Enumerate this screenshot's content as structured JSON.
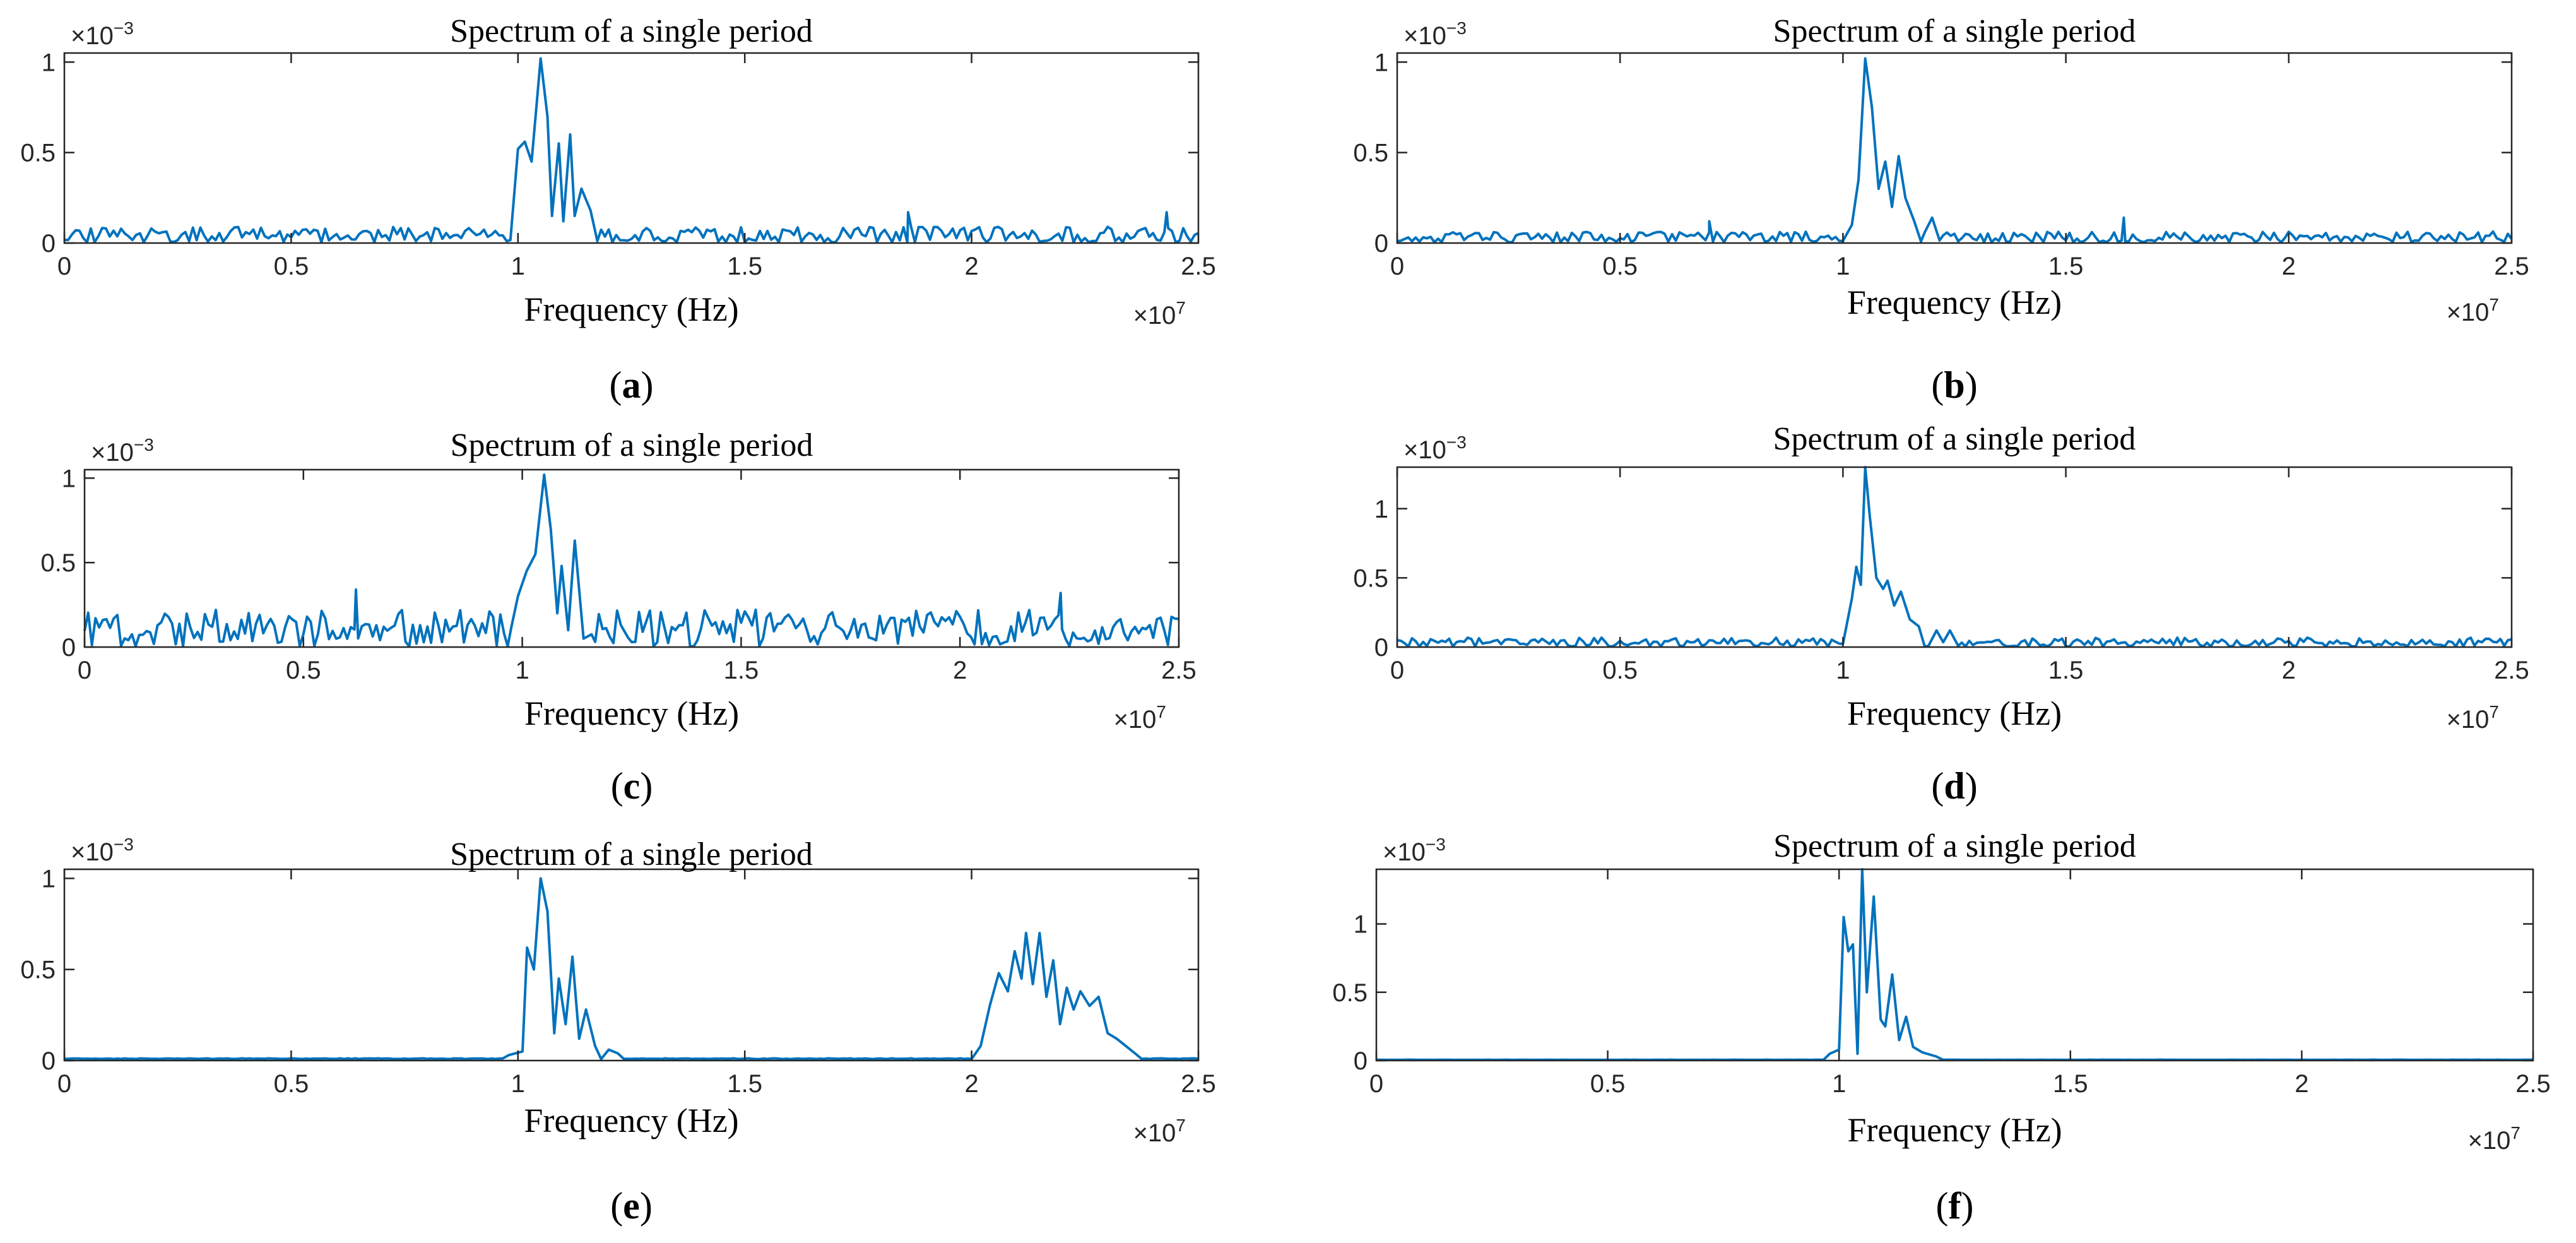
{
  "figure": {
    "line_color": "#0072BD",
    "axis_color": "#262626"
  },
  "chart_data": [
    {
      "id": "a",
      "caption": "a",
      "type": "line",
      "title": "Spectrum of a single period",
      "xlabel": "Frequency (Hz)",
      "ylabel": "",
      "x_multiplier": "×10",
      "x_exponent": "7",
      "y_multiplier": "×10",
      "y_exponent": "−3",
      "xlim": [
        0,
        2.5
      ],
      "ylim": [
        0,
        1.05
      ],
      "xticks": [
        0,
        0.5,
        1,
        1.5,
        2,
        2.5
      ],
      "xtick_labels": [
        "0",
        "0.5",
        "1",
        "1.5",
        "2",
        "2.5"
      ],
      "yticks": [
        0,
        0.5,
        1
      ],
      "ytick_labels": [
        "0",
        "0.5",
        "1"
      ],
      "noise": {
        "floor": 0.04,
        "amp": 0.09,
        "seed": 11
      },
      "peaks": [
        {
          "x": 1.0,
          "y": 0.52
        },
        {
          "x": 1.015,
          "y": 0.56
        },
        {
          "x": 1.03,
          "y": 0.45
        },
        {
          "x": 1.05,
          "y": 1.02
        },
        {
          "x": 1.065,
          "y": 0.7
        },
        {
          "x": 1.075,
          "y": 0.15
        },
        {
          "x": 1.09,
          "y": 0.55
        },
        {
          "x": 1.1,
          "y": 0.12
        },
        {
          "x": 1.115,
          "y": 0.6
        },
        {
          "x": 1.125,
          "y": 0.15
        },
        {
          "x": 1.14,
          "y": 0.3
        },
        {
          "x": 1.16,
          "y": 0.18
        }
      ],
      "spikes": [
        {
          "x": 1.86,
          "y": 0.17
        },
        {
          "x": 2.43,
          "y": 0.17
        }
      ]
    },
    {
      "id": "b",
      "caption": "b",
      "type": "line",
      "title": "Spectrum of a single period",
      "xlabel": "Frequency (Hz)",
      "ylabel": "",
      "x_multiplier": "×10",
      "x_exponent": "7",
      "y_multiplier": "×10",
      "y_exponent": "−3",
      "xlim": [
        0,
        2.5
      ],
      "ylim": [
        0,
        1.05
      ],
      "xticks": [
        0,
        0.5,
        1,
        1.5,
        2,
        2.5
      ],
      "xtick_labels": [
        "0",
        "0.5",
        "1",
        "1.5",
        "2",
        "2.5"
      ],
      "yticks": [
        0,
        0.5,
        1
      ],
      "ytick_labels": [
        "0",
        "0.5",
        "1"
      ],
      "noise": {
        "floor": 0.03,
        "amp": 0.06,
        "seed": 23
      },
      "peaks": [
        {
          "x": 1.02,
          "y": 0.1
        },
        {
          "x": 1.035,
          "y": 0.35
        },
        {
          "x": 1.05,
          "y": 1.02
        },
        {
          "x": 1.065,
          "y": 0.75
        },
        {
          "x": 1.08,
          "y": 0.3
        },
        {
          "x": 1.095,
          "y": 0.45
        },
        {
          "x": 1.11,
          "y": 0.2
        },
        {
          "x": 1.125,
          "y": 0.48
        },
        {
          "x": 1.14,
          "y": 0.25
        },
        {
          "x": 1.16,
          "y": 0.12
        },
        {
          "x": 1.2,
          "y": 0.14
        }
      ],
      "spikes": [
        {
          "x": 0.7,
          "y": 0.12
        },
        {
          "x": 1.63,
          "y": 0.14
        }
      ]
    },
    {
      "id": "c",
      "caption": "c",
      "type": "line",
      "title": "Spectrum of a single period",
      "xlabel": "Frequency (Hz)",
      "ylabel": "",
      "x_multiplier": "×10",
      "x_exponent": "7",
      "y_multiplier": "×10",
      "y_exponent": "−3",
      "xlim": [
        0,
        2.5
      ],
      "ylim": [
        0,
        1.05
      ],
      "xticks": [
        0,
        0.5,
        1,
        1.5,
        2,
        2.5
      ],
      "xtick_labels": [
        "0",
        "0.5",
        "1",
        "1.5",
        "2",
        "2.5"
      ],
      "yticks": [
        0,
        0.5,
        1
      ],
      "ytick_labels": [
        "0",
        "0.5",
        "1"
      ],
      "noise": {
        "floor": 0.1,
        "amp": 0.22,
        "seed": 37
      },
      "peaks": [
        {
          "x": 0.99,
          "y": 0.3
        },
        {
          "x": 1.01,
          "y": 0.45
        },
        {
          "x": 1.03,
          "y": 0.55
        },
        {
          "x": 1.05,
          "y": 1.02
        },
        {
          "x": 1.065,
          "y": 0.7
        },
        {
          "x": 1.08,
          "y": 0.2
        },
        {
          "x": 1.09,
          "y": 0.48
        },
        {
          "x": 1.105,
          "y": 0.1
        },
        {
          "x": 1.12,
          "y": 0.63
        },
        {
          "x": 1.14,
          "y": 0.05
        }
      ],
      "spikes": [
        {
          "x": 0.62,
          "y": 0.34
        },
        {
          "x": 2.23,
          "y": 0.32
        }
      ]
    },
    {
      "id": "d",
      "caption": "d",
      "type": "line",
      "title": "Spectrum of a single period",
      "xlabel": "Frequency (Hz)",
      "ylabel": "",
      "x_multiplier": "×10",
      "x_exponent": "7",
      "y_multiplier": "×10",
      "y_exponent": "−3",
      "xlim": [
        0,
        2.5
      ],
      "ylim": [
        0,
        1.3
      ],
      "xticks": [
        0,
        0.5,
        1,
        1.5,
        2,
        2.5
      ],
      "xtick_labels": [
        "0",
        "0.5",
        "1",
        "1.5",
        "2",
        "2.5"
      ],
      "yticks": [
        0,
        0.5,
        1
      ],
      "ytick_labels": [
        "0",
        "0.5",
        "1"
      ],
      "noise": {
        "floor": 0.03,
        "amp": 0.07,
        "seed": 51
      },
      "peaks": [
        {
          "x": 1.02,
          "y": 0.35
        },
        {
          "x": 1.03,
          "y": 0.58
        },
        {
          "x": 1.04,
          "y": 0.45
        },
        {
          "x": 1.05,
          "y": 1.3
        },
        {
          "x": 1.06,
          "y": 0.95
        },
        {
          "x": 1.075,
          "y": 0.5
        },
        {
          "x": 1.09,
          "y": 0.42
        },
        {
          "x": 1.1,
          "y": 0.48
        },
        {
          "x": 1.115,
          "y": 0.3
        },
        {
          "x": 1.13,
          "y": 0.4
        },
        {
          "x": 1.15,
          "y": 0.2
        },
        {
          "x": 1.17,
          "y": 0.15
        },
        {
          "x": 1.21,
          "y": 0.12
        },
        {
          "x": 1.24,
          "y": 0.12
        }
      ],
      "spikes": []
    },
    {
      "id": "e",
      "caption": "e",
      "type": "line",
      "title": "Spectrum of a single period",
      "xlabel": "Frequency (Hz)",
      "ylabel": "",
      "x_multiplier": "×10",
      "x_exponent": "7",
      "y_multiplier": "×10",
      "y_exponent": "−3",
      "xlim": [
        0,
        2.5
      ],
      "ylim": [
        0,
        1.05
      ],
      "xticks": [
        0,
        0.5,
        1,
        1.5,
        2,
        2.5
      ],
      "xtick_labels": [
        "0",
        "0.5",
        "1",
        "1.5",
        "2",
        "2.5"
      ],
      "yticks": [
        0,
        0.5,
        1
      ],
      "ytick_labels": [
        "0",
        "0.5",
        "1"
      ],
      "noise": {
        "floor": 0.01,
        "amp": 0.004,
        "seed": 67
      },
      "peaks": [
        {
          "x": 0.98,
          "y": 0.03
        },
        {
          "x": 1.01,
          "y": 0.05
        },
        {
          "x": 1.02,
          "y": 0.62
        },
        {
          "x": 1.035,
          "y": 0.5
        },
        {
          "x": 1.05,
          "y": 1.0
        },
        {
          "x": 1.065,
          "y": 0.82
        },
        {
          "x": 1.08,
          "y": 0.15
        },
        {
          "x": 1.09,
          "y": 0.45
        },
        {
          "x": 1.105,
          "y": 0.2
        },
        {
          "x": 1.12,
          "y": 0.57
        },
        {
          "x": 1.135,
          "y": 0.12
        },
        {
          "x": 1.15,
          "y": 0.28
        },
        {
          "x": 1.17,
          "y": 0.08
        },
        {
          "x": 1.2,
          "y": 0.06
        },
        {
          "x": 1.22,
          "y": 0.04
        },
        {
          "x": 2.02,
          "y": 0.08
        },
        {
          "x": 2.04,
          "y": 0.3
        },
        {
          "x": 2.06,
          "y": 0.48
        },
        {
          "x": 2.08,
          "y": 0.38
        },
        {
          "x": 2.095,
          "y": 0.6
        },
        {
          "x": 2.11,
          "y": 0.45
        },
        {
          "x": 2.12,
          "y": 0.7
        },
        {
          "x": 2.135,
          "y": 0.42
        },
        {
          "x": 2.15,
          "y": 0.7
        },
        {
          "x": 2.165,
          "y": 0.35
        },
        {
          "x": 2.18,
          "y": 0.55
        },
        {
          "x": 2.195,
          "y": 0.2
        },
        {
          "x": 2.21,
          "y": 0.4
        },
        {
          "x": 2.225,
          "y": 0.28
        },
        {
          "x": 2.24,
          "y": 0.38
        },
        {
          "x": 2.26,
          "y": 0.3
        },
        {
          "x": 2.28,
          "y": 0.35
        },
        {
          "x": 2.3,
          "y": 0.15
        },
        {
          "x": 2.32,
          "y": 0.12
        },
        {
          "x": 2.34,
          "y": 0.08
        },
        {
          "x": 2.36,
          "y": 0.04
        }
      ],
      "spikes": []
    },
    {
      "id": "f",
      "caption": "f",
      "type": "line",
      "title": "Spectrum of a single period",
      "xlabel": "Frequency (Hz)",
      "ylabel": "",
      "x_multiplier": "×10",
      "x_exponent": "7",
      "y_multiplier": "×10",
      "y_exponent": "−3",
      "xlim": [
        0,
        2.5
      ],
      "ylim": [
        0,
        1.4
      ],
      "xticks": [
        0,
        0.5,
        1,
        1.5,
        2,
        2.5
      ],
      "xtick_labels": [
        "0",
        "0.5",
        "1",
        "1.5",
        "2",
        "2.5"
      ],
      "yticks": [
        0,
        0.5,
        1
      ],
      "ytick_labels": [
        "0",
        "0.5",
        "1"
      ],
      "noise": {
        "floor": 0.005,
        "amp": 0.003,
        "seed": 83
      },
      "peaks": [
        {
          "x": 0.98,
          "y": 0.05
        },
        {
          "x": 1.0,
          "y": 0.08
        },
        {
          "x": 1.01,
          "y": 1.05
        },
        {
          "x": 1.02,
          "y": 0.8
        },
        {
          "x": 1.03,
          "y": 0.85
        },
        {
          "x": 1.04,
          "y": 0.05
        },
        {
          "x": 1.05,
          "y": 1.4
        },
        {
          "x": 1.06,
          "y": 0.5
        },
        {
          "x": 1.075,
          "y": 1.2
        },
        {
          "x": 1.09,
          "y": 0.3
        },
        {
          "x": 1.1,
          "y": 0.25
        },
        {
          "x": 1.115,
          "y": 0.63
        },
        {
          "x": 1.13,
          "y": 0.15
        },
        {
          "x": 1.145,
          "y": 0.32
        },
        {
          "x": 1.16,
          "y": 0.1
        },
        {
          "x": 1.18,
          "y": 0.06
        },
        {
          "x": 1.21,
          "y": 0.03
        }
      ],
      "spikes": []
    }
  ]
}
